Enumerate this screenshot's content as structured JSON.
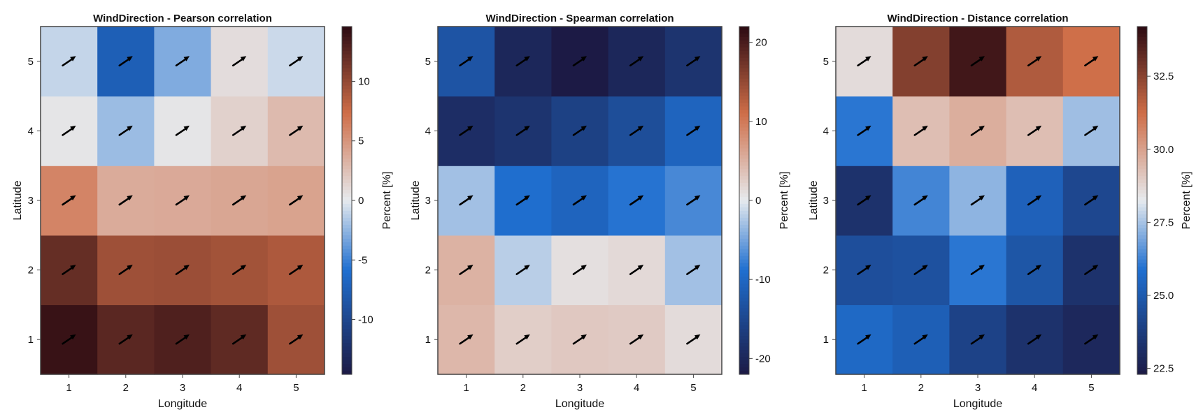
{
  "chart_data": [
    {
      "type": "heatmap",
      "title": "WindDirection - Pearson correlation",
      "xlabel": "Longitude",
      "ylabel": "Latitude",
      "x": [
        1,
        2,
        3,
        4,
        5
      ],
      "y": [
        1,
        2,
        3,
        4,
        5
      ],
      "values_by_row_y1_to_y5": [
        [
          14.0,
          12.5,
          13.0,
          12.3,
          9.5
        ],
        [
          12.0,
          9.5,
          9.6,
          9.3,
          8.8
        ],
        [
          6.0,
          3.7,
          3.8,
          4.0,
          4.2
        ],
        [
          0.3,
          -2.2,
          0.3,
          1.5,
          2.8
        ],
        [
          -1.0,
          -7.5,
          -3.0,
          0.8,
          -0.8
        ]
      ],
      "colorbar": {
        "label": "Percent [%]",
        "range": [
          -14.6,
          14.6
        ],
        "ticks": [
          -10,
          -5,
          0,
          5,
          10
        ],
        "tick_labels": [
          "-10",
          "-5",
          "0",
          "5",
          "10"
        ]
      },
      "arrow_direction": "north-east arrow in every cell"
    },
    {
      "type": "heatmap",
      "title": "WindDirection - Spearman correlation",
      "xlabel": "Longitude",
      "ylabel": "Latitude",
      "x": [
        1,
        2,
        3,
        4,
        5
      ],
      "y": [
        1,
        2,
        3,
        4,
        5
      ],
      "values_by_row_y1_to_y5": [
        [
          4.5,
          2.5,
          3.0,
          2.8,
          1.3
        ],
        [
          5.0,
          -2.0,
          1.0,
          1.5,
          -3.0
        ],
        [
          -3.0,
          -9.0,
          -10.5,
          -8.5,
          -7.0
        ],
        [
          -19.0,
          -18.0,
          -16.0,
          -14.0,
          -10.5
        ],
        [
          -13.0,
          -20.0,
          -22.0,
          -20.0,
          -18.0
        ]
      ],
      "colorbar": {
        "label": "Percent [%]",
        "range": [
          -22,
          22
        ],
        "ticks": [
          -20,
          -10,
          0,
          10,
          20
        ],
        "tick_labels": [
          "-20",
          "-10",
          "0",
          "10",
          "20"
        ]
      },
      "arrow_direction": "north-east arrow in every cell"
    },
    {
      "type": "heatmap",
      "title": "WindDirection - Distance correlation",
      "xlabel": "Longitude",
      "ylabel": "Latitude",
      "x": [
        1,
        2,
        3,
        4,
        5
      ],
      "y": [
        1,
        2,
        3,
        4,
        5
      ],
      "values_by_row_y1_to_y5": [
        [
          25.6,
          25.2,
          24.0,
          23.3,
          22.9
        ],
        [
          24.5,
          24.6,
          26.0,
          24.8,
          23.3
        ],
        [
          23.3,
          26.3,
          27.2,
          25.3,
          24.2
        ],
        [
          26.0,
          29.3,
          29.7,
          29.3,
          27.4
        ],
        [
          28.6,
          32.6,
          33.8,
          31.8,
          31.2
        ]
      ],
      "colorbar": {
        "label": "Percent [%]",
        "range": [
          22.3,
          34.2
        ],
        "ticks": [
          22.5,
          25.0,
          27.5,
          30.0,
          32.5
        ],
        "tick_labels": [
          "22.5",
          "25.0",
          "27.5",
          "30.0",
          "32.5"
        ]
      },
      "arrow_direction": "north-east arrow in every cell"
    }
  ],
  "colors": {
    "low": "#1c1a45",
    "blue": "#1f6fd0",
    "mid": "#e6eaee",
    "orange": "#cf6e48",
    "high": "#2b0a12",
    "frame": "#444444",
    "arrow": "#000000"
  },
  "icons": {
    "cell_marker": "arrow-icon"
  }
}
